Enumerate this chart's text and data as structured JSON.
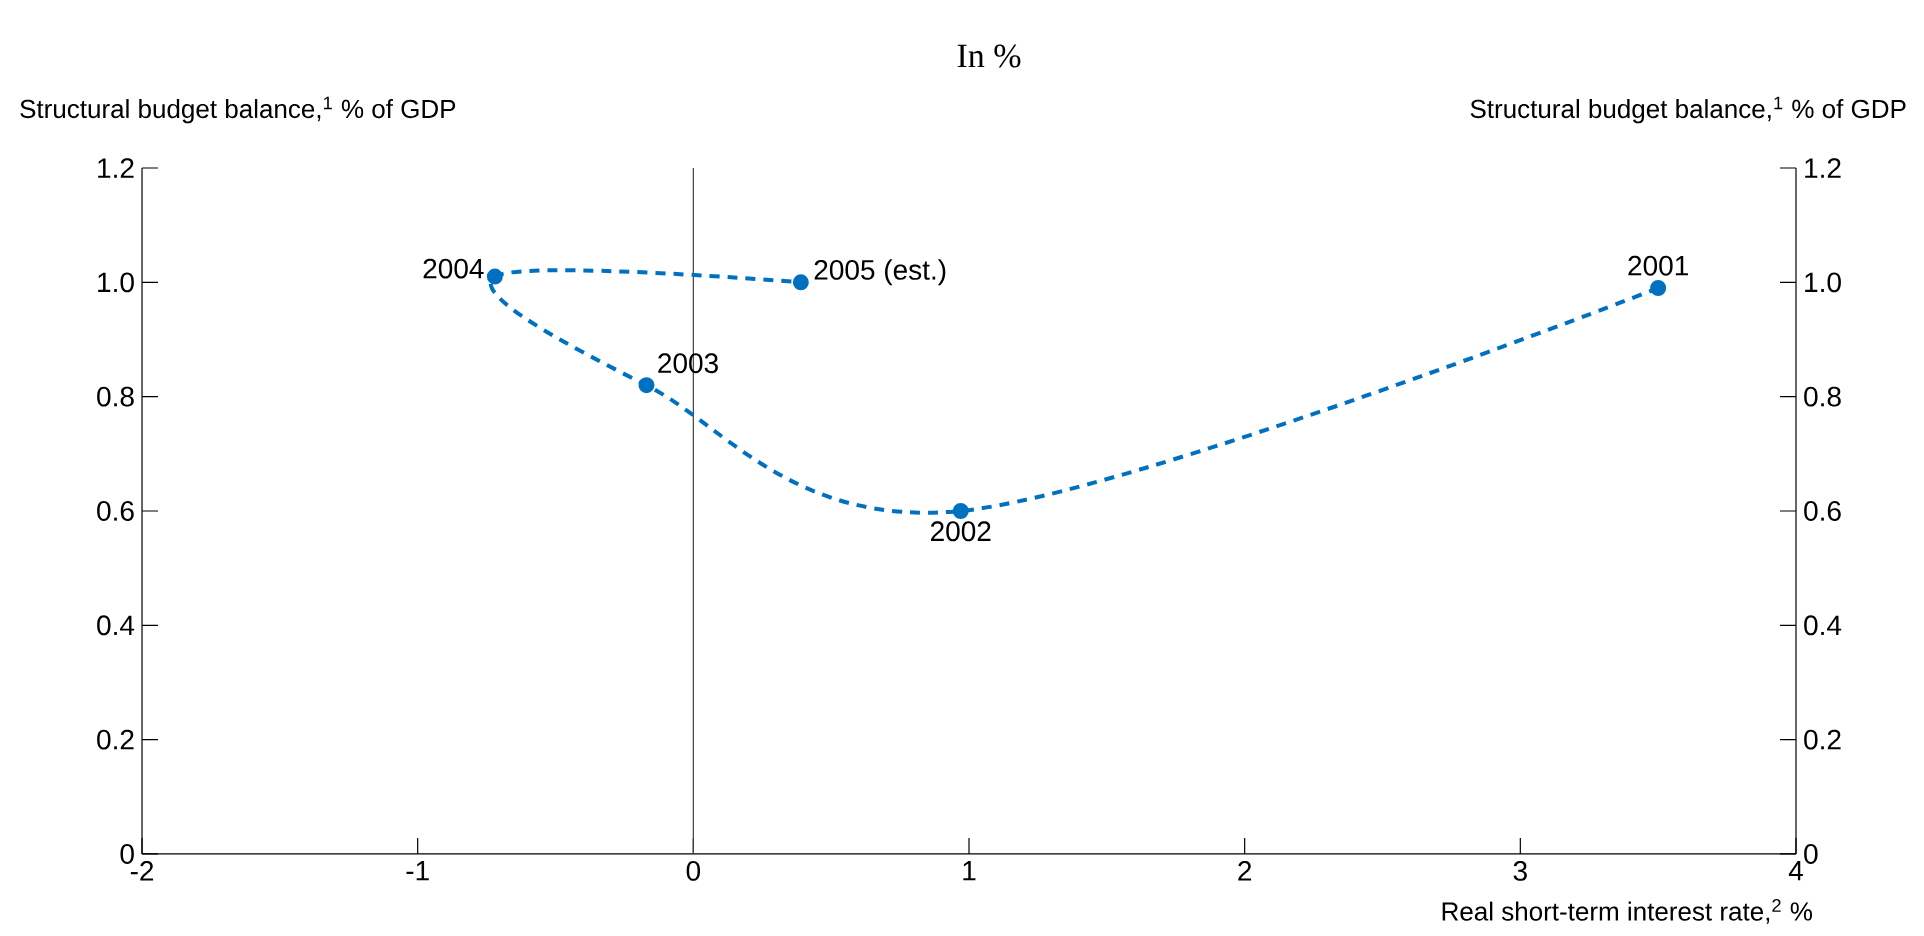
{
  "chart_data": {
    "type": "line",
    "subtitle": "In %",
    "ylabel": "Structural budget balance,$^{1}$ % of GDP",
    "y2label": "Structural budget balance,$^{1}$ % of GDP",
    "xlabel": "Real short-term interest rate,$^{2}$ %",
    "x": [
      3.5,
      0.97,
      -0.17,
      -0.72,
      0.39
    ],
    "series": [
      {
        "color": "#0070c0",
        "values": [
          0.99,
          0.6,
          0.82,
          1.01,
          1.0
        ]
      }
    ],
    "marker": "circle",
    "line_style": "dashed",
    "grid": false,
    "xlim": [
      -2,
      4
    ],
    "xticks": [
      -2,
      -1,
      0,
      1,
      2,
      3,
      4
    ],
    "ylim": [
      0,
      1.2
    ],
    "yticks": [
      {
        "value": 0,
        "label": "0"
      },
      {
        "value": 0.2,
        "label": "0.2"
      },
      {
        "value": 0.4,
        "label": "0.4"
      },
      {
        "value": 0.6,
        "label": "0.6"
      },
      {
        "value": 0.8,
        "label": "0.8"
      },
      {
        "value": 1.0,
        "label": "1.0"
      },
      {
        "value": 1.2,
        "label": "1.2"
      }
    ],
    "y2lim": [
      0,
      1.2
    ],
    "y2ticks": [
      {
        "value": 0,
        "label": "0"
      },
      {
        "value": 0.2,
        "label": "0.2"
      },
      {
        "value": 0.4,
        "label": "0.4"
      },
      {
        "value": 0.6,
        "label": "0.6"
      },
      {
        "value": 0.8,
        "label": "0.8"
      },
      {
        "value": 1.0,
        "label": "1.0"
      },
      {
        "value": 1.2,
        "label": "1.2"
      }
    ],
    "ref_lines": [
      {
        "axis": "x",
        "value": 0,
        "color": "#404040"
      }
    ],
    "annotations": [
      {
        "text": "2001",
        "x": 3.5,
        "y": 0.99
      },
      {
        "text": "2002",
        "x": 0.97,
        "y": 0.6
      },
      {
        "text": "2003",
        "x": -0.17,
        "y": 0.82
      },
      {
        "text": "2004",
        "x": -0.72,
        "y": 1.01
      },
      {
        "text": "2005 (est.)",
        "x": 0.39,
        "y": 1.0
      }
    ]
  }
}
